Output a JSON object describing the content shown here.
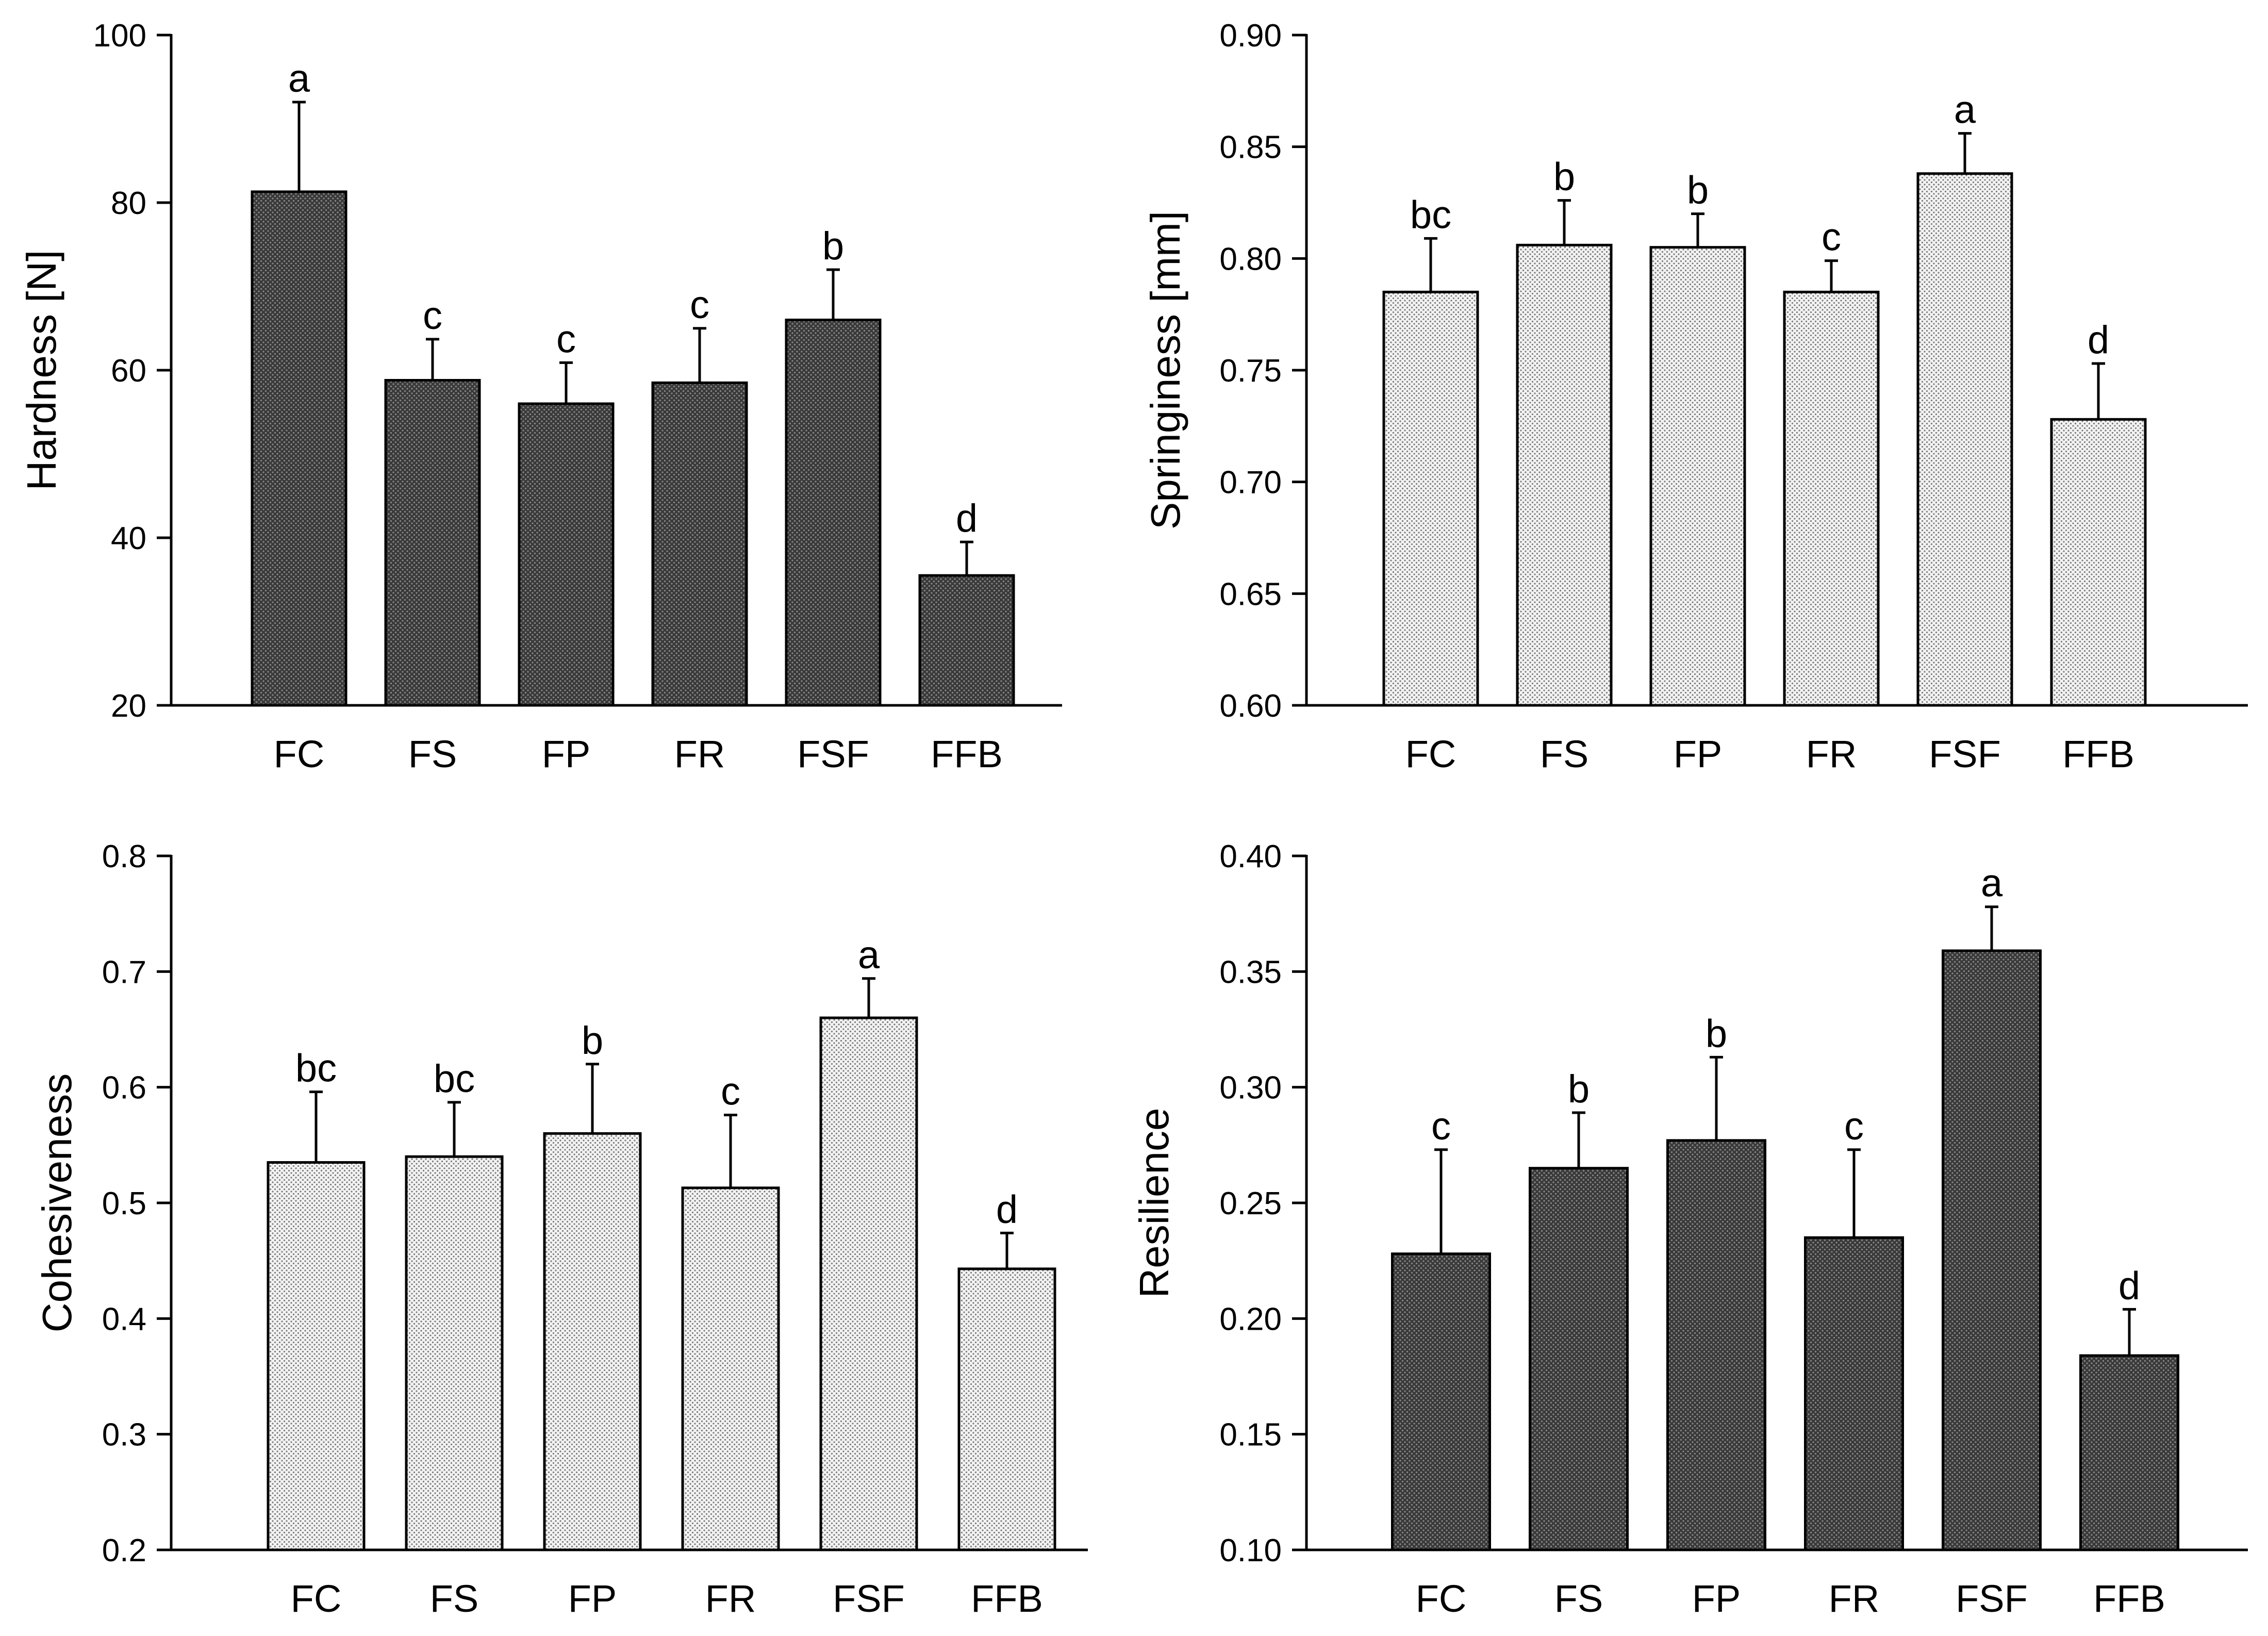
{
  "chart_data": [
    {
      "type": "bar",
      "ylabel": "Hardness [N]",
      "categories": [
        "FC",
        "FS",
        "FP",
        "FR",
        "FSF",
        "FFB"
      ],
      "values": [
        81.3,
        58.8,
        56.0,
        58.5,
        66.0,
        35.5
      ],
      "errors": [
        10.7,
        4.9,
        4.9,
        6.5,
        6.0,
        4.0
      ],
      "letters": [
        "a",
        "c",
        "c",
        "c",
        "b",
        "d"
      ],
      "ylim": [
        20,
        100
      ],
      "yticks": [
        20,
        40,
        60,
        80,
        100
      ],
      "ytick_labels": [
        "20",
        "40",
        "60",
        "80",
        "100"
      ],
      "fill": "dark"
    },
    {
      "type": "bar",
      "ylabel": "Springiness [mm]",
      "categories": [
        "FC",
        "FS",
        "FP",
        "FR",
        "FSF",
        "FFB"
      ],
      "values": [
        0.785,
        0.806,
        0.805,
        0.785,
        0.838,
        0.728
      ],
      "errors": [
        0.024,
        0.02,
        0.015,
        0.014,
        0.018,
        0.025
      ],
      "letters": [
        "bc",
        "b",
        "b",
        "c",
        "a",
        "d"
      ],
      "ylim": [
        0.6,
        0.9
      ],
      "yticks": [
        0.6,
        0.65,
        0.7,
        0.75,
        0.8,
        0.85,
        0.9
      ],
      "ytick_labels": [
        "0.60",
        "0.65",
        "0.70",
        "0.75",
        "0.80",
        "0.85",
        "0.90"
      ],
      "fill": "light"
    },
    {
      "type": "bar",
      "ylabel": "Cohesiveness",
      "categories": [
        "FC",
        "FS",
        "FP",
        "FR",
        "FSF",
        "FFB"
      ],
      "values": [
        0.535,
        0.54,
        0.56,
        0.513,
        0.66,
        0.443
      ],
      "errors": [
        0.061,
        0.047,
        0.06,
        0.063,
        0.034,
        0.031
      ],
      "letters": [
        "bc",
        "bc",
        "b",
        "c",
        "a",
        "d"
      ],
      "ylim": [
        0.2,
        0.8
      ],
      "yticks": [
        0.2,
        0.3,
        0.4,
        0.5,
        0.6,
        0.7,
        0.8
      ],
      "ytick_labels": [
        "0.2",
        "0.3",
        "0.4",
        "0.5",
        "0.6",
        "0.7",
        "0.8"
      ],
      "fill": "light"
    },
    {
      "type": "bar",
      "ylabel": "Resilience",
      "categories": [
        "FC",
        "FS",
        "FP",
        "FR",
        "FSF",
        "FFB"
      ],
      "values": [
        0.228,
        0.265,
        0.277,
        0.235,
        0.359,
        0.184
      ],
      "errors": [
        0.045,
        0.024,
        0.036,
        0.038,
        0.019,
        0.02
      ],
      "letters": [
        "c",
        "b",
        "b",
        "c",
        "a",
        "d"
      ],
      "ylim": [
        0.1,
        0.4
      ],
      "yticks": [
        0.1,
        0.15,
        0.2,
        0.25,
        0.3,
        0.35,
        0.4
      ],
      "ytick_labels": [
        "0.10",
        "0.15",
        "0.20",
        "0.25",
        "0.30",
        "0.35",
        "0.40"
      ],
      "fill": "dark"
    }
  ]
}
